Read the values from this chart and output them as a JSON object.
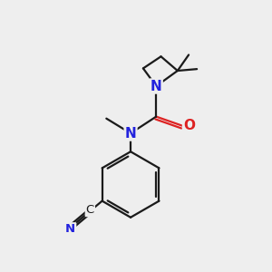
{
  "background_color": "#eeeeee",
  "bond_color": "#1a1a1a",
  "N_color": "#2222dd",
  "O_color": "#dd2222",
  "C_color": "#1a1a1a",
  "bond_lw": 1.6,
  "figsize": [
    3.0,
    3.0
  ],
  "dpi": 100,
  "xlim": [
    0,
    10
  ],
  "ylim": [
    0,
    10
  ]
}
